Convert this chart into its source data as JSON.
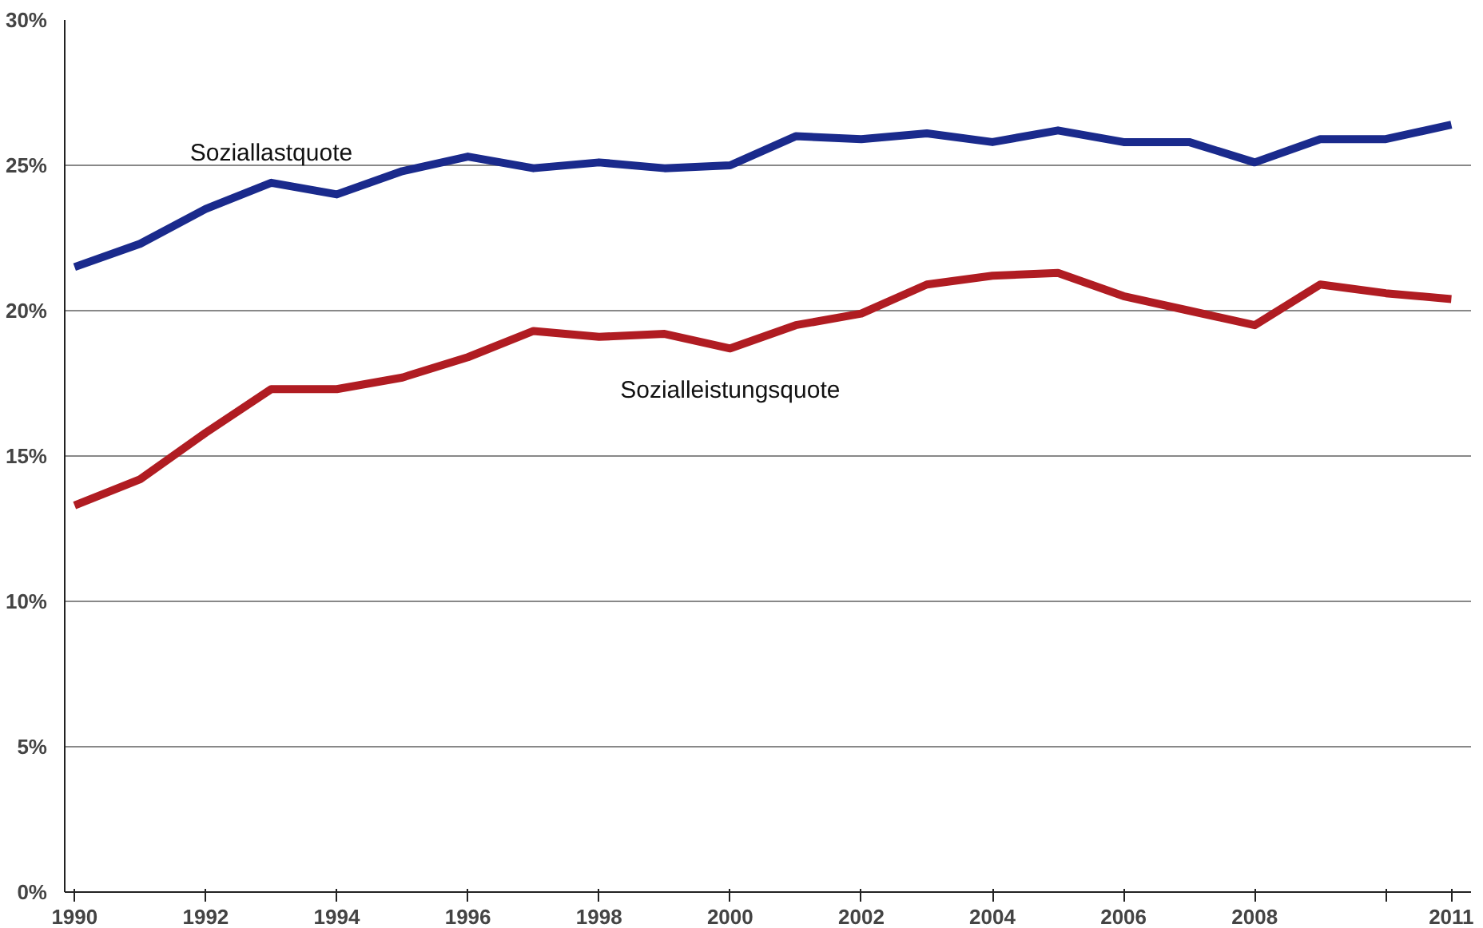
{
  "chart_data": {
    "type": "line",
    "x": [
      1990,
      1991,
      1992,
      1993,
      1994,
      1995,
      1996,
      1997,
      1998,
      1999,
      2000,
      2001,
      2002,
      2003,
      2004,
      2005,
      2006,
      2007,
      2008,
      2009,
      2010,
      2011
    ],
    "series": [
      {
        "name": "Soziallastquote",
        "color": "#1a2a8c",
        "values": [
          21.5,
          22.3,
          23.5,
          24.4,
          24.0,
          24.8,
          25.3,
          24.9,
          25.1,
          24.9,
          25.0,
          26.0,
          25.9,
          26.1,
          25.8,
          26.2,
          25.8,
          25.8,
          25.1,
          25.9,
          25.9,
          26.4
        ]
      },
      {
        "name": "Sozialleistungsquote",
        "color": "#b01c22",
        "values": [
          13.3,
          14.2,
          15.8,
          17.3,
          17.3,
          17.7,
          18.4,
          19.3,
          19.1,
          19.2,
          18.7,
          19.5,
          19.9,
          20.9,
          21.2,
          21.3,
          20.5,
          20.0,
          19.5,
          20.9,
          20.6,
          20.4
        ]
      }
    ],
    "xlim": [
      1989.85,
      2011.3
    ],
    "xticks": [
      1990,
      1992,
      1994,
      1996,
      1998,
      2000,
      2002,
      2004,
      2006,
      2008,
      {
        "value": 2010,
        "label": null
      },
      2011
    ],
    "ylim": [
      0,
      30
    ],
    "yticks": [
      {
        "value": 0,
        "label": "0%"
      },
      {
        "value": 5,
        "label": "5%"
      },
      {
        "value": 10,
        "label": "10%"
      },
      {
        "value": 15,
        "label": "15%"
      },
      {
        "value": 20,
        "label": "20%"
      },
      {
        "value": 25,
        "label": "25%"
      },
      {
        "value": 30,
        "label": "30%"
      }
    ],
    "grid": "y",
    "legend": false,
    "line_style": "solid",
    "marker": "none"
  }
}
